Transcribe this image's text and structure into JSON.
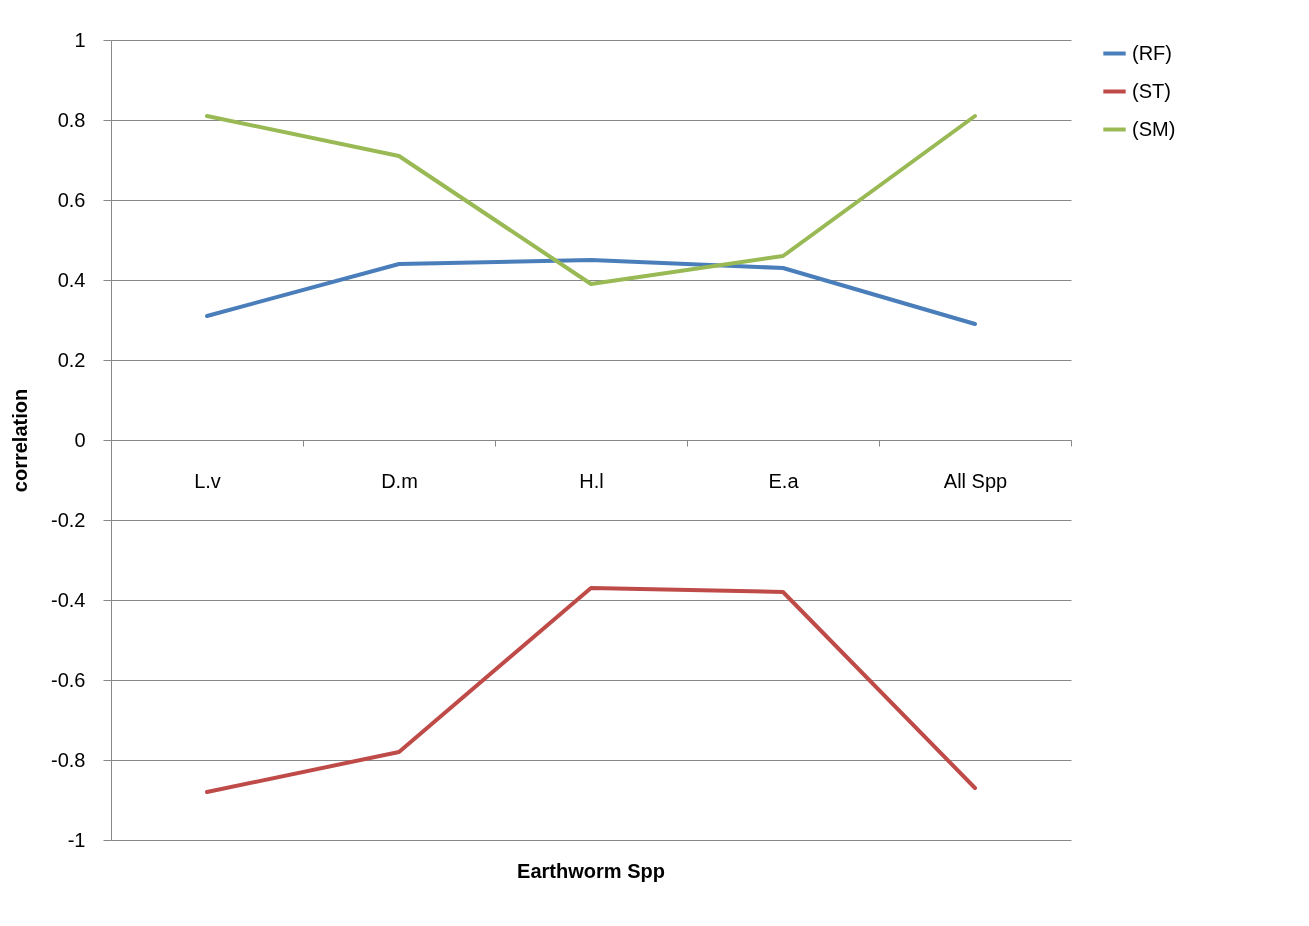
{
  "chart_data": {
    "type": "line",
    "xlabel": "Earthworm Spp",
    "ylabel": "correlation",
    "categories": [
      "L.v",
      "D.m",
      "H.l",
      "E.a",
      "All  Spp"
    ],
    "series": [
      {
        "name": "(RF)",
        "color": "#4a7ebb",
        "values": [
          0.31,
          0.44,
          0.45,
          0.43,
          0.29
        ]
      },
      {
        "name": "(ST)",
        "color": "#be4b48",
        "values": [
          -0.88,
          -0.78,
          -0.37,
          -0.38,
          -0.87
        ]
      },
      {
        "name": "(SM)",
        "color": "#98b954",
        "values": [
          0.81,
          0.71,
          0.39,
          0.46,
          0.81
        ]
      }
    ],
    "ylim": [
      -1,
      1
    ],
    "yticks": [
      -1,
      -0.8,
      -0.6,
      -0.4,
      -0.2,
      0,
      0.2,
      0.4,
      0.6,
      0.8,
      1
    ],
    "grid": "y",
    "legend": "right",
    "marker": "none",
    "line_style": "solid"
  }
}
